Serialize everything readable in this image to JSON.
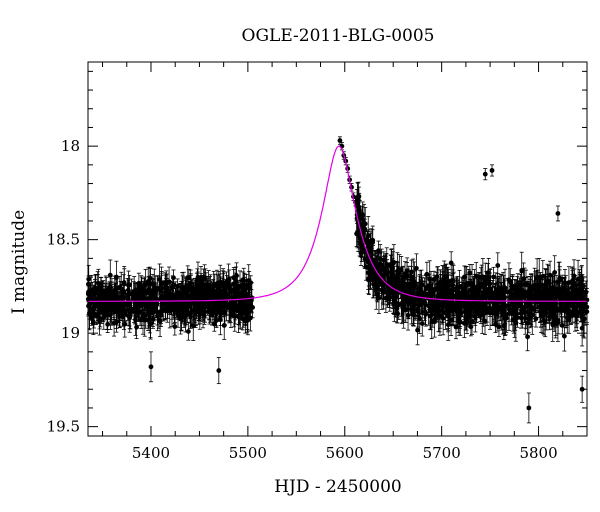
{
  "chart_data": {
    "type": "scatter",
    "title": "OGLE-2011-BLG-0005",
    "xlabel": "HJD - 2450000",
    "ylabel": "I magnitude",
    "xlim": [
      5335,
      5850
    ],
    "ylim": [
      19.55,
      17.55
    ],
    "y_inverted": true,
    "x_ticks": [
      5400,
      5500,
      5600,
      5700,
      5800
    ],
    "y_ticks": [
      18,
      18.5,
      19,
      19.5
    ],
    "x_tick_labels": [
      "5400",
      "5500",
      "5600",
      "5700",
      "5800"
    ],
    "y_tick_labels": [
      "18",
      "18.5",
      "19",
      "19.5"
    ],
    "grid": false,
    "legend": "none",
    "colors": {
      "data": "#000000",
      "model": "#e600e6"
    },
    "series": [
      {
        "type": "scatter_with_errorbars",
        "seasons": [
          {
            "x_range": [
              5335,
              5505
            ],
            "baseline_mag": 18.85,
            "scatter": 0.08,
            "typical_error": 0.06
          },
          {
            "x_range": [
              5612,
              5850
            ],
            "baseline_mag": 18.85,
            "scatter": 0.09,
            "typical_error": 0.07
          }
        ],
        "peak_points": [
          {
            "x": 5595,
            "y": 17.97
          },
          {
            "x": 5597,
            "y": 18.0
          },
          {
            "x": 5599,
            "y": 18.05
          },
          {
            "x": 5601,
            "y": 18.08
          },
          {
            "x": 5603,
            "y": 18.12
          },
          {
            "x": 5605,
            "y": 18.18
          },
          {
            "x": 5607,
            "y": 18.22
          },
          {
            "x": 5609,
            "y": 18.27
          },
          {
            "x": 5611,
            "y": 18.3
          },
          {
            "x": 5613,
            "y": 18.35
          }
        ],
        "outliers": [
          {
            "x": 5745,
            "y": 18.15,
            "err": 0.03
          },
          {
            "x": 5752,
            "y": 18.13,
            "err": 0.03
          },
          {
            "x": 5820,
            "y": 18.36,
            "err": 0.04
          },
          {
            "x": 5400,
            "y": 19.18,
            "err": 0.08
          },
          {
            "x": 5470,
            "y": 19.2,
            "err": 0.07
          },
          {
            "x": 5790,
            "y": 19.4,
            "err": 0.08
          },
          {
            "x": 5845,
            "y": 19.3,
            "err": 0.07
          }
        ]
      },
      {
        "type": "line",
        "model": "microlensing",
        "t0": 5594,
        "u0": 0.5,
        "tE": 30,
        "baseline_mag": 18.83,
        "peak_mag": 18.0
      }
    ]
  }
}
